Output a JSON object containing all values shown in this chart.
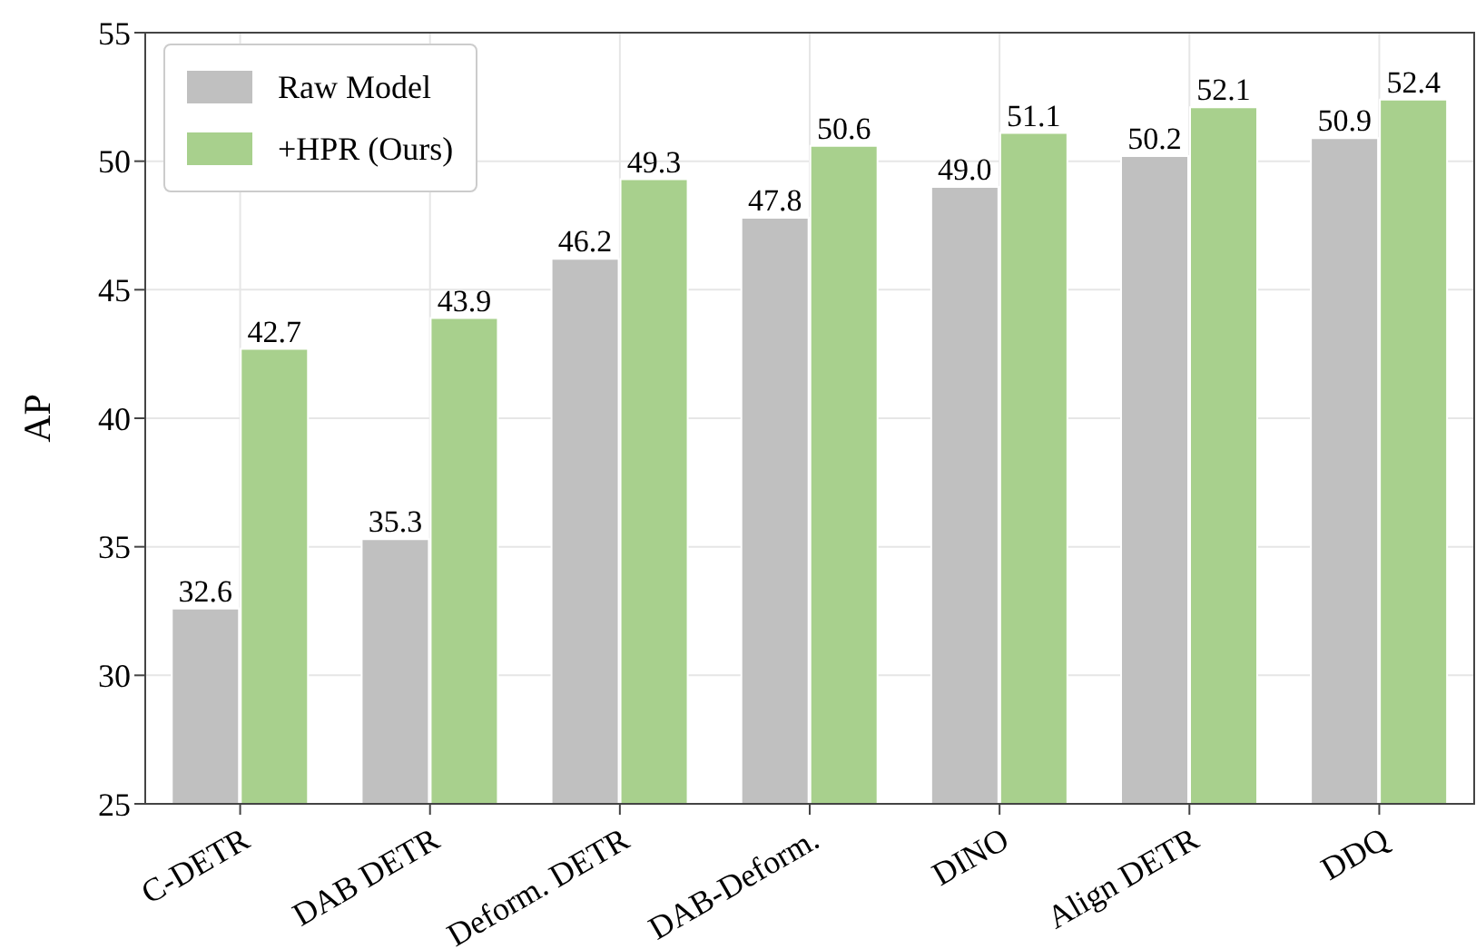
{
  "chart_data": {
    "type": "bar",
    "ylabel": "AP",
    "categories": [
      "C-DETR",
      "DAB DETR",
      "Deform. DETR",
      "DAB-Deform.",
      "DINO",
      "Align DETR",
      "DDQ"
    ],
    "series": [
      {
        "name": "Raw Model",
        "color": "#c0c0c0",
        "values": [
          32.6,
          35.3,
          46.2,
          47.8,
          49.0,
          50.2,
          50.9
        ],
        "value_labels": [
          "32.6",
          "35.3",
          "46.2",
          "47.8",
          "49.0",
          "50.2",
          "50.9"
        ]
      },
      {
        "name": "+HPR (Ours)",
        "color": "#a8d08d",
        "values": [
          42.7,
          43.9,
          49.3,
          50.6,
          51.1,
          52.1,
          52.4
        ],
        "value_labels": [
          "42.7",
          "43.9",
          "49.3",
          "50.6",
          "51.1",
          "52.1",
          "52.4"
        ]
      }
    ],
    "ylim": [
      25,
      55
    ],
    "yticks": [
      25,
      30,
      35,
      40,
      45,
      50,
      55
    ],
    "grid": true,
    "legend": "top left"
  }
}
